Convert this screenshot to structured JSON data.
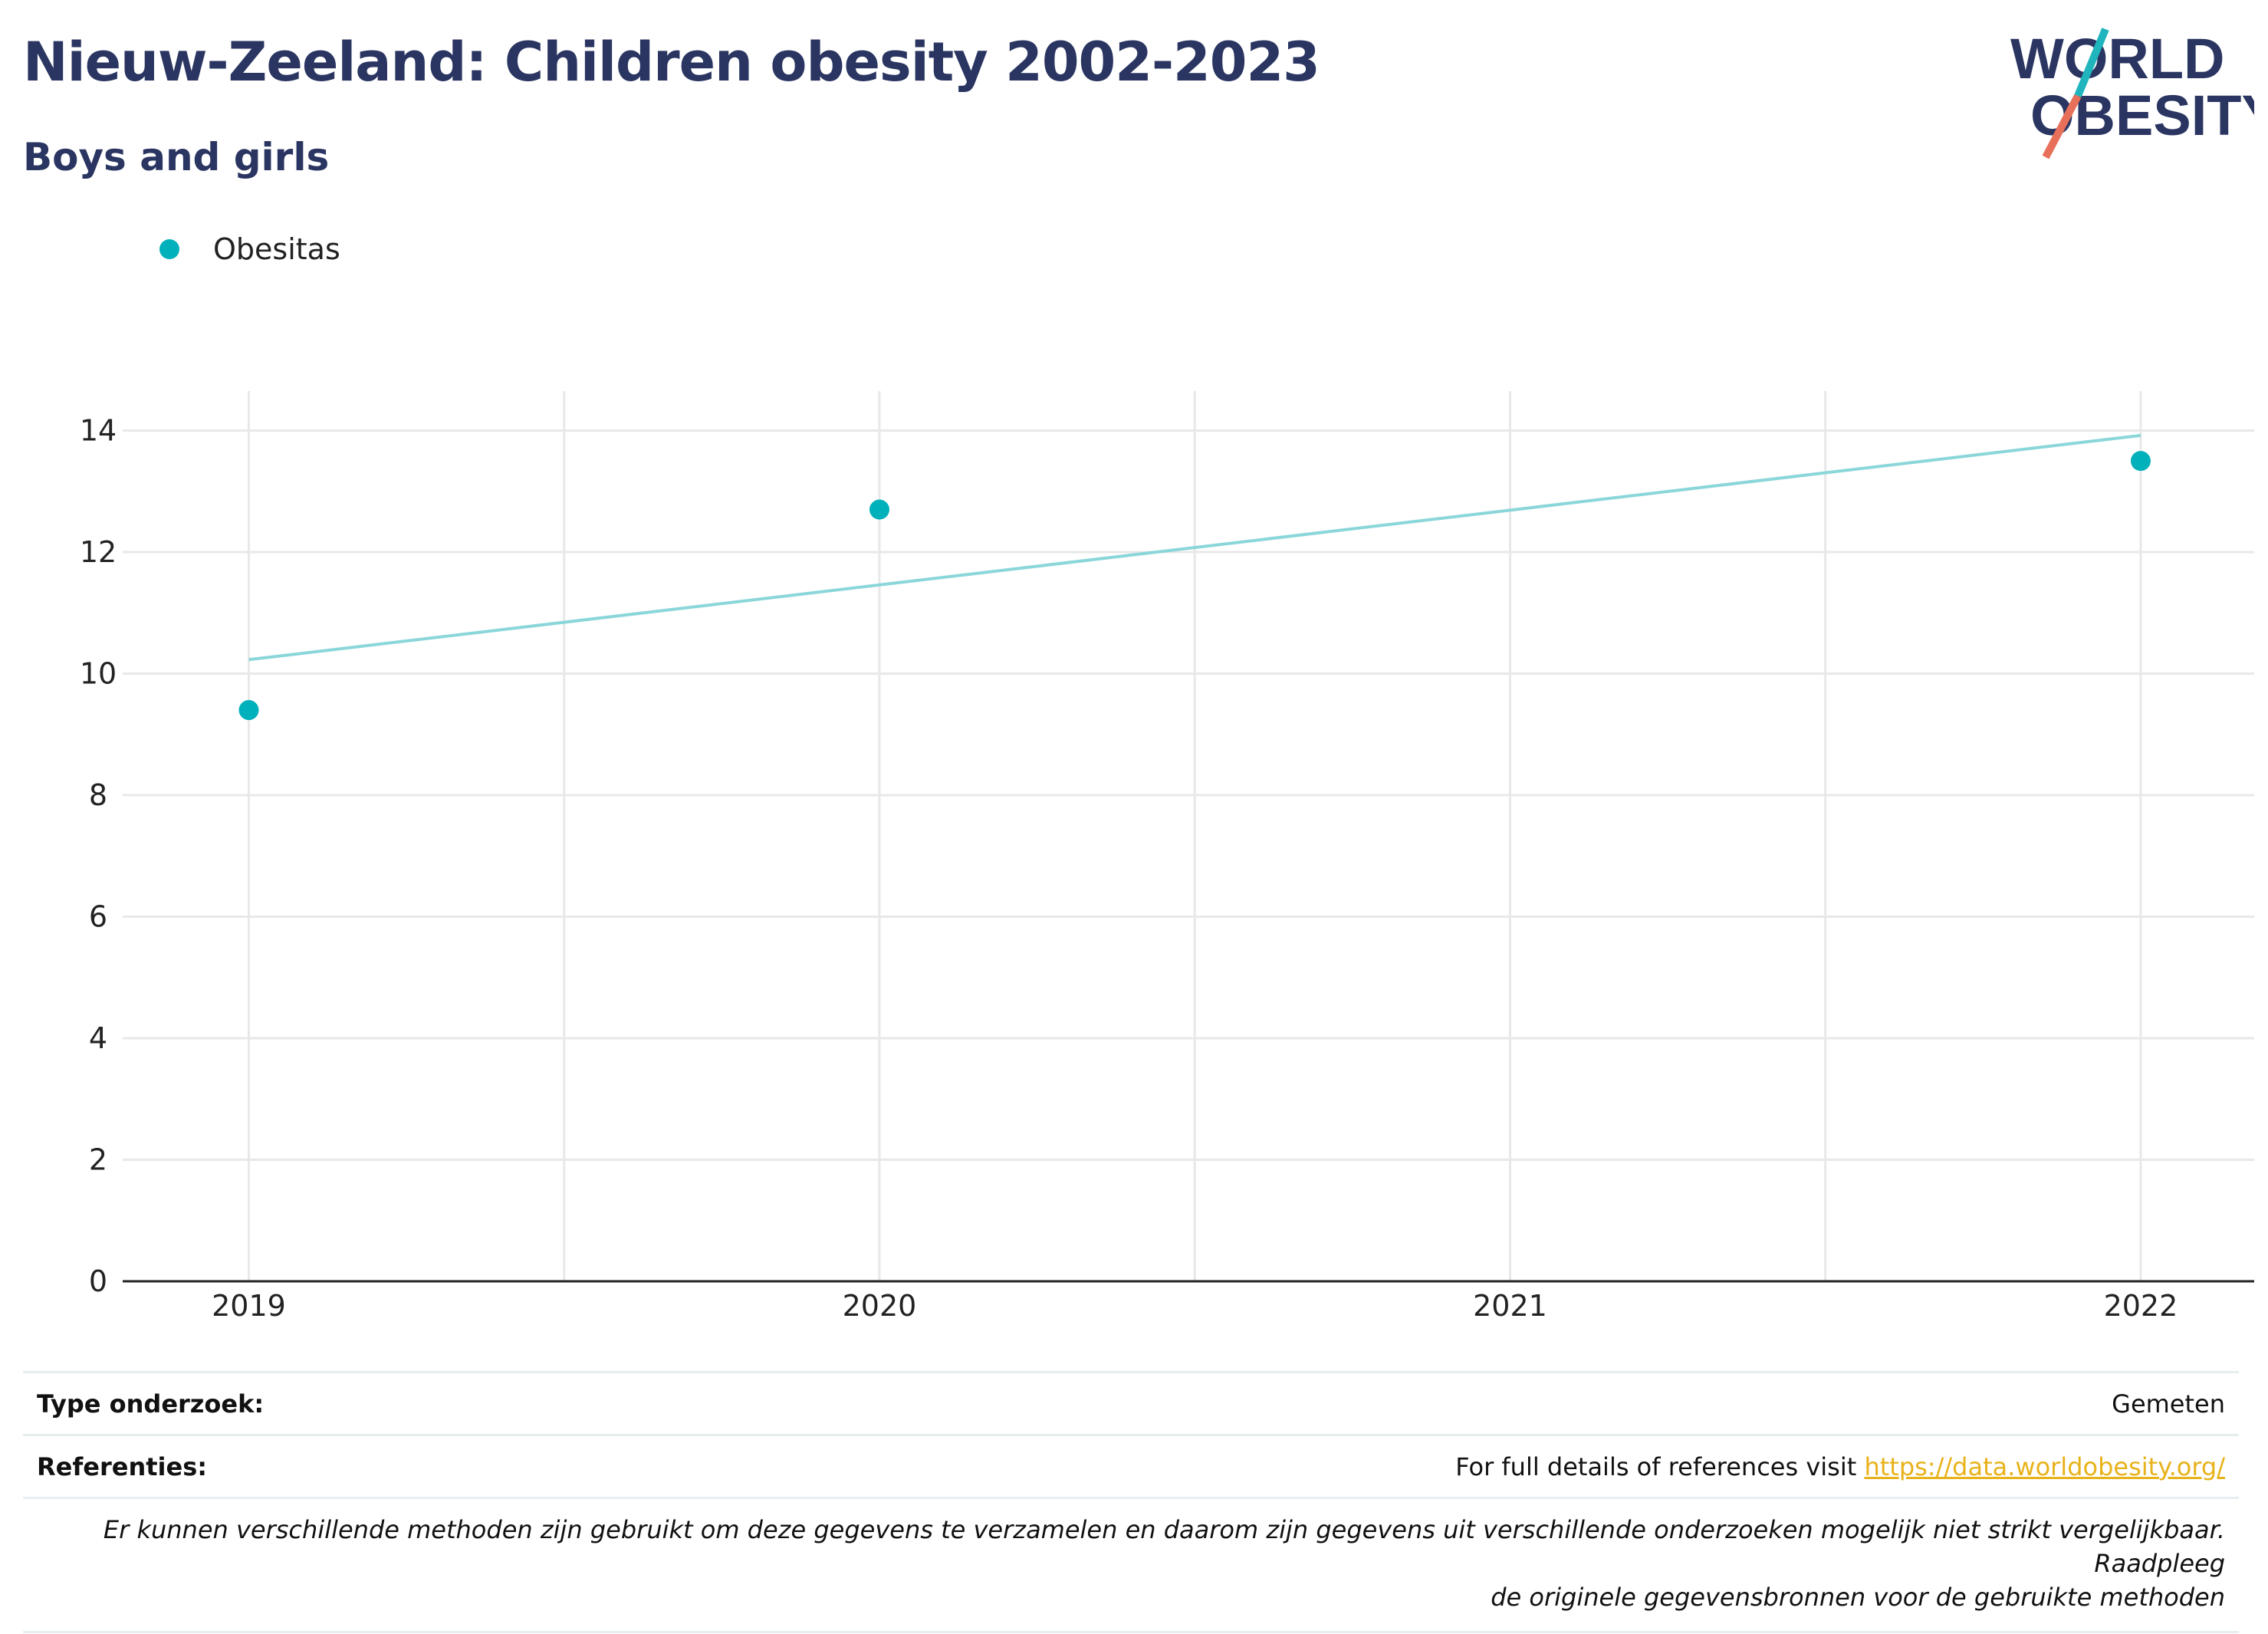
{
  "header": {
    "title": "Nieuw-Zeeland: Children obesity 2002-2023",
    "subtitle": "Boys and girls"
  },
  "logo": {
    "line1": "WORLD",
    "line2": "OBESITY",
    "colors": {
      "text": "#2a3561",
      "slash_top": "#20b5bd",
      "slash_bottom": "#e8705a"
    }
  },
  "legend": {
    "items": [
      {
        "label": "Obesitas",
        "color": "#00b0ba"
      }
    ]
  },
  "chart_data": {
    "type": "scatter",
    "x": [
      2019,
      2020,
      2022
    ],
    "series": [
      {
        "name": "Obesitas",
        "values": [
          9.4,
          12.7,
          13.5
        ],
        "color": "#00b0ba"
      }
    ],
    "trendline": {
      "x": [
        2019,
        2022
      ],
      "y": [
        10.23,
        13.92
      ],
      "color": "#8ad6d9"
    },
    "x_ticks": [
      "2019",
      "2020",
      "2021",
      "2022"
    ],
    "y_ticks": [
      "0",
      "2",
      "4",
      "6",
      "8",
      "10",
      "12",
      "14"
    ],
    "xlim": [
      2018.8,
      2022.18
    ],
    "ylim": [
      0,
      14.65
    ],
    "grid": true,
    "legend_position": "top-left"
  },
  "footer": {
    "study_type_label": "Type onderzoek:",
    "study_type_value": "Gemeten",
    "references_label": "Referenties:",
    "references_text": "For full details of references visit",
    "references_link": "https://data.worldobesity.org/",
    "note_line1": "Er kunnen verschillende methoden zijn gebruikt om deze gegevens te verzamelen en daarom zijn gegevens uit verschillende onderzoeken mogelijk niet strikt vergelijkbaar. Raadpleeg",
    "note_line2": "de originele gegevensbronnen voor de gebruikte methoden"
  }
}
